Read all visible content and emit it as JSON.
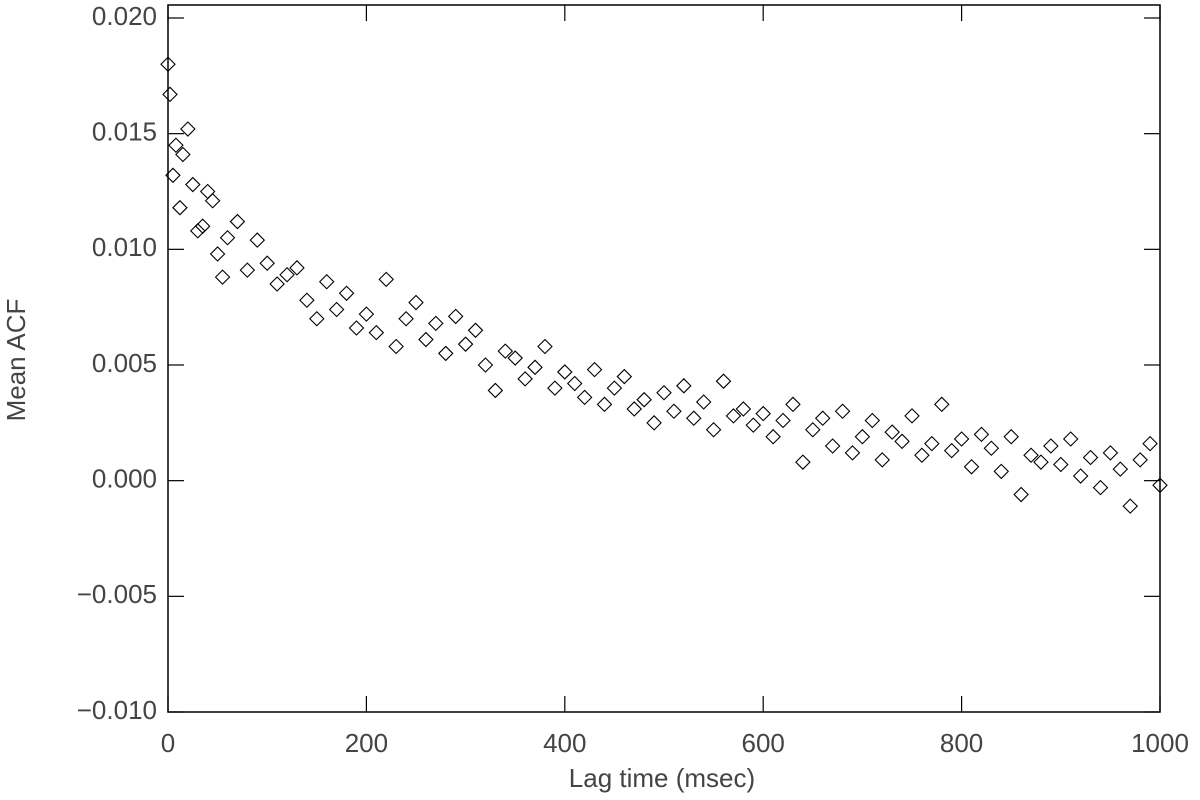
{
  "chart_data": {
    "type": "scatter",
    "xlabel": "Lag time (msec)",
    "ylabel": "Mean ACF",
    "xlim": [
      0,
      1000
    ],
    "xticks": [
      0,
      200,
      400,
      600,
      800,
      1000
    ],
    "ylim": [
      -0.01,
      0.02
    ],
    "yticks": [
      {
        "value": -0.01,
        "label": "−0.010"
      },
      {
        "value": -0.005,
        "label": "−0.005"
      },
      {
        "value": 0,
        "label": "0.000"
      },
      {
        "value": 0.005,
        "label": "0.005"
      },
      {
        "value": 0.01,
        "label": "0.010"
      },
      {
        "value": 0.015,
        "label": "0.015"
      },
      {
        "value": 0.02,
        "label": "0.020"
      }
    ],
    "marker": "diamond",
    "color": "#000000",
    "x": [
      0,
      2,
      5,
      8,
      12,
      15,
      20,
      25,
      30,
      35,
      40,
      45,
      50,
      55,
      60,
      70,
      80,
      90,
      100,
      110,
      120,
      130,
      140,
      150,
      160,
      170,
      180,
      190,
      200,
      210,
      220,
      230,
      240,
      250,
      260,
      270,
      280,
      290,
      300,
      310,
      320,
      330,
      340,
      350,
      360,
      370,
      380,
      390,
      400,
      410,
      420,
      430,
      440,
      450,
      460,
      470,
      480,
      490,
      500,
      510,
      520,
      530,
      540,
      550,
      560,
      570,
      580,
      590,
      600,
      610,
      620,
      630,
      640,
      650,
      660,
      670,
      680,
      690,
      700,
      710,
      720,
      730,
      740,
      750,
      760,
      770,
      780,
      790,
      800,
      810,
      820,
      830,
      840,
      850,
      860,
      870,
      880,
      890,
      900,
      910,
      920,
      930,
      940,
      950,
      960,
      970,
      980,
      990,
      1000
    ],
    "y": [
      0.018,
      0.0167,
      0.0132,
      0.0145,
      0.0118,
      0.0141,
      0.0152,
      0.0128,
      0.0108,
      0.011,
      0.0125,
      0.0121,
      0.0098,
      0.0088,
      0.0105,
      0.0112,
      0.0091,
      0.0104,
      0.0094,
      0.0085,
      0.0089,
      0.0092,
      0.0078,
      0.007,
      0.0086,
      0.0074,
      0.0081,
      0.0066,
      0.0072,
      0.0064,
      0.0087,
      0.0058,
      0.007,
      0.0077,
      0.0061,
      0.0068,
      0.0055,
      0.0071,
      0.0059,
      0.0065,
      0.005,
      0.0039,
      0.0056,
      0.0053,
      0.0044,
      0.0049,
      0.0058,
      0.004,
      0.0047,
      0.0042,
      0.0036,
      0.0048,
      0.0033,
      0.004,
      0.0045,
      0.0031,
      0.0035,
      0.0025,
      0.0038,
      0.003,
      0.0041,
      0.0027,
      0.0034,
      0.0022,
      0.0043,
      0.0028,
      0.0031,
      0.0024,
      0.0029,
      0.0019,
      0.0026,
      0.0033,
      0.0008,
      0.0022,
      0.0027,
      0.0015,
      0.003,
      0.0012,
      0.0019,
      0.0026,
      0.0009,
      0.0021,
      0.0017,
      0.0028,
      0.0011,
      0.0016,
      0.0033,
      0.0013,
      0.0018,
      0.0006,
      0.002,
      0.0014,
      0.0004,
      0.0019,
      -0.0006,
      0.0011,
      0.0008,
      0.0015,
      0.0007,
      0.0018,
      0.0002,
      0.001,
      -0.0003,
      0.0012,
      0.0005,
      -0.0011,
      0.0009,
      0.0016,
      -0.0002
    ]
  }
}
